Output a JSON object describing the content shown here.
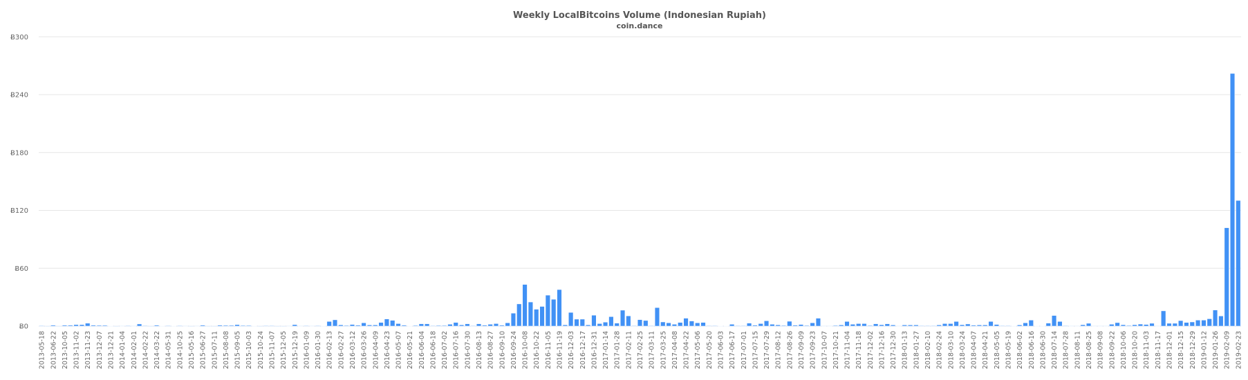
{
  "chart_data": {
    "type": "bar",
    "title": "Weekly LocalBitcoins Volume (Indonesian Rupiah)",
    "subtitle": "coin.dance",
    "xlabel": "",
    "ylabel": "",
    "ylim": [
      0,
      300
    ],
    "yticks": [
      0,
      60,
      120,
      180,
      240,
      300
    ],
    "ytick_labels": [
      "Ƀ0",
      "Ƀ60",
      "Ƀ120",
      "Ƀ180",
      "Ƀ240",
      "Ƀ300"
    ],
    "grid": true,
    "bar_color": "#4191f5",
    "grid_color": "#e6e6e6",
    "x_tick_labels_every_other_bar": [
      "2013-05-18",
      "2013-06-22",
      "2013-10-05",
      "2013-11-02",
      "2013-11-23",
      "2013-12-07",
      "2013-12-21",
      "2014-01-04",
      "2014-02-01",
      "2014-02-22",
      "2014-03-22",
      "2014-05-31",
      "2014-10-25",
      "2015-05-16",
      "2015-06-27",
      "2015-07-11",
      "2015-08-08",
      "2015-09-05",
      "2015-10-03",
      "2015-10-24",
      "2015-11-07",
      "2015-12-05",
      "2015-12-19",
      "2016-01-09",
      "2016-01-30",
      "2016-02-13",
      "2016-02-27",
      "2016-03-12",
      "2016-03-26",
      "2016-04-09",
      "2016-04-23",
      "2016-05-07",
      "2016-05-21",
      "2016-06-04",
      "2016-06-18",
      "2016-07-02",
      "2016-07-16",
      "2016-07-30",
      "2016-08-13",
      "2016-08-27",
      "2016-09-10",
      "2016-09-24",
      "2016-10-08",
      "2016-10-22",
      "2016-11-05",
      "2016-11-19",
      "2016-12-03",
      "2016-12-17",
      "2016-12-31",
      "2017-01-14",
      "2017-01-28",
      "2017-02-11",
      "2017-02-25",
      "2017-03-11",
      "2017-03-25",
      "2017-04-08",
      "2017-04-22",
      "2017-05-06",
      "2017-05-20",
      "2017-06-03",
      "2017-06-17",
      "2017-07-01",
      "2017-07-15",
      "2017-07-29",
      "2017-08-12",
      "2017-08-26",
      "2017-09-09",
      "2017-09-23",
      "2017-10-07",
      "2017-10-21",
      "2017-11-04",
      "2017-11-18",
      "2017-12-02",
      "2017-12-16",
      "2017-12-30",
      "2018-01-13",
      "2018-01-27",
      "2018-02-10",
      "2018-02-24",
      "2018-03-10",
      "2018-03-24",
      "2018-04-07",
      "2018-04-21",
      "2018-05-05",
      "2018-05-19",
      "2018-06-02",
      "2018-06-16",
      "2018-06-30",
      "2018-07-14",
      "2018-07-28",
      "2018-08-11",
      "2018-08-25",
      "2018-09-08",
      "2018-09-22",
      "2018-10-06",
      "2018-10-20",
      "2018-11-03",
      "2018-11-17",
      "2018-12-01",
      "2018-12-15",
      "2018-12-29",
      "2019-01-12",
      "2019-01-26",
      "2019-02-09",
      "2019-02-23"
    ],
    "values": [
      0.5,
      0,
      1,
      0,
      1,
      1,
      1.5,
      1.5,
      3,
      1,
      0.8,
      0.8,
      0.2,
      0,
      0.3,
      0.5,
      0.3,
      2.2,
      0.5,
      0,
      1,
      0.2,
      0.5,
      0.2,
      0.5,
      0.3,
      0,
      0.3,
      1,
      0,
      0,
      1,
      0.8,
      0.8,
      1.5,
      0.7,
      0.7,
      0.2,
      0,
      0.5,
      0.5,
      0,
      0,
      0.3,
      1.5,
      0.3,
      0.5,
      0.3,
      0.5,
      0.2,
      4.8,
      6.5,
      1.3,
      0.7,
      1.7,
      1,
      3.4,
      1.2,
      1.2,
      3.8,
      7.4,
      6,
      2.6,
      1,
      0.2,
      0.7,
      2.4,
      2.4,
      0.5,
      0.7,
      0.7,
      1.9,
      3.8,
      1.3,
      2.4,
      0.5,
      2.4,
      1,
      1.9,
      2.6,
      1,
      3.4,
      13.4,
      23,
      43.2,
      25,
      17.5,
      20.4,
      32.1,
      27.8,
      37.9,
      1.3,
      14.2,
      7.2,
      7.2,
      1.3,
      11.3,
      2.6,
      4.1,
      9.8,
      3.1,
      16.5,
      10.6,
      0.5,
      6.7,
      5.8,
      0.5,
      19.2,
      4.3,
      3.4,
      1.9,
      3.8,
      8.2,
      5.3,
      3.4,
      3.8,
      0.5,
      0.5,
      0.2,
      0.2,
      1.9,
      0.5,
      0.5,
      3.1,
      1,
      2.6,
      5.5,
      1.9,
      1.3,
      0.7,
      5,
      1,
      1.7,
      0.7,
      3.4,
      8.2,
      0.3,
      0.3,
      0.7,
      1.2,
      4.8,
      1.9,
      2.6,
      2.6,
      0.7,
      2.4,
      1.4,
      2.4,
      1.2,
      0.3,
      1.2,
      1.2,
      1.2,
      0.5,
      0.5,
      0.5,
      1.2,
      2.6,
      2.6,
      4.8,
      1.4,
      2.2,
      1,
      1.2,
      1.2,
      4.8,
      1.7,
      0.5,
      0.5,
      0.2,
      1.2,
      3.4,
      6.2,
      0.2,
      0.2,
      3.1,
      11,
      4.8,
      0.5,
      0.3,
      0.3,
      1.4,
      2.9,
      0.3,
      0.3,
      0.3,
      1.9,
      3.6,
      1.4,
      0.7,
      1.4,
      2.1,
      1.7,
      2.9,
      0.3,
      15.8,
      2.9,
      2.9,
      5.7,
      3.8,
      4.3,
      6.2,
      6.2,
      7.6,
      16.7,
      10.5,
      102,
      262,
      130.3
    ]
  }
}
